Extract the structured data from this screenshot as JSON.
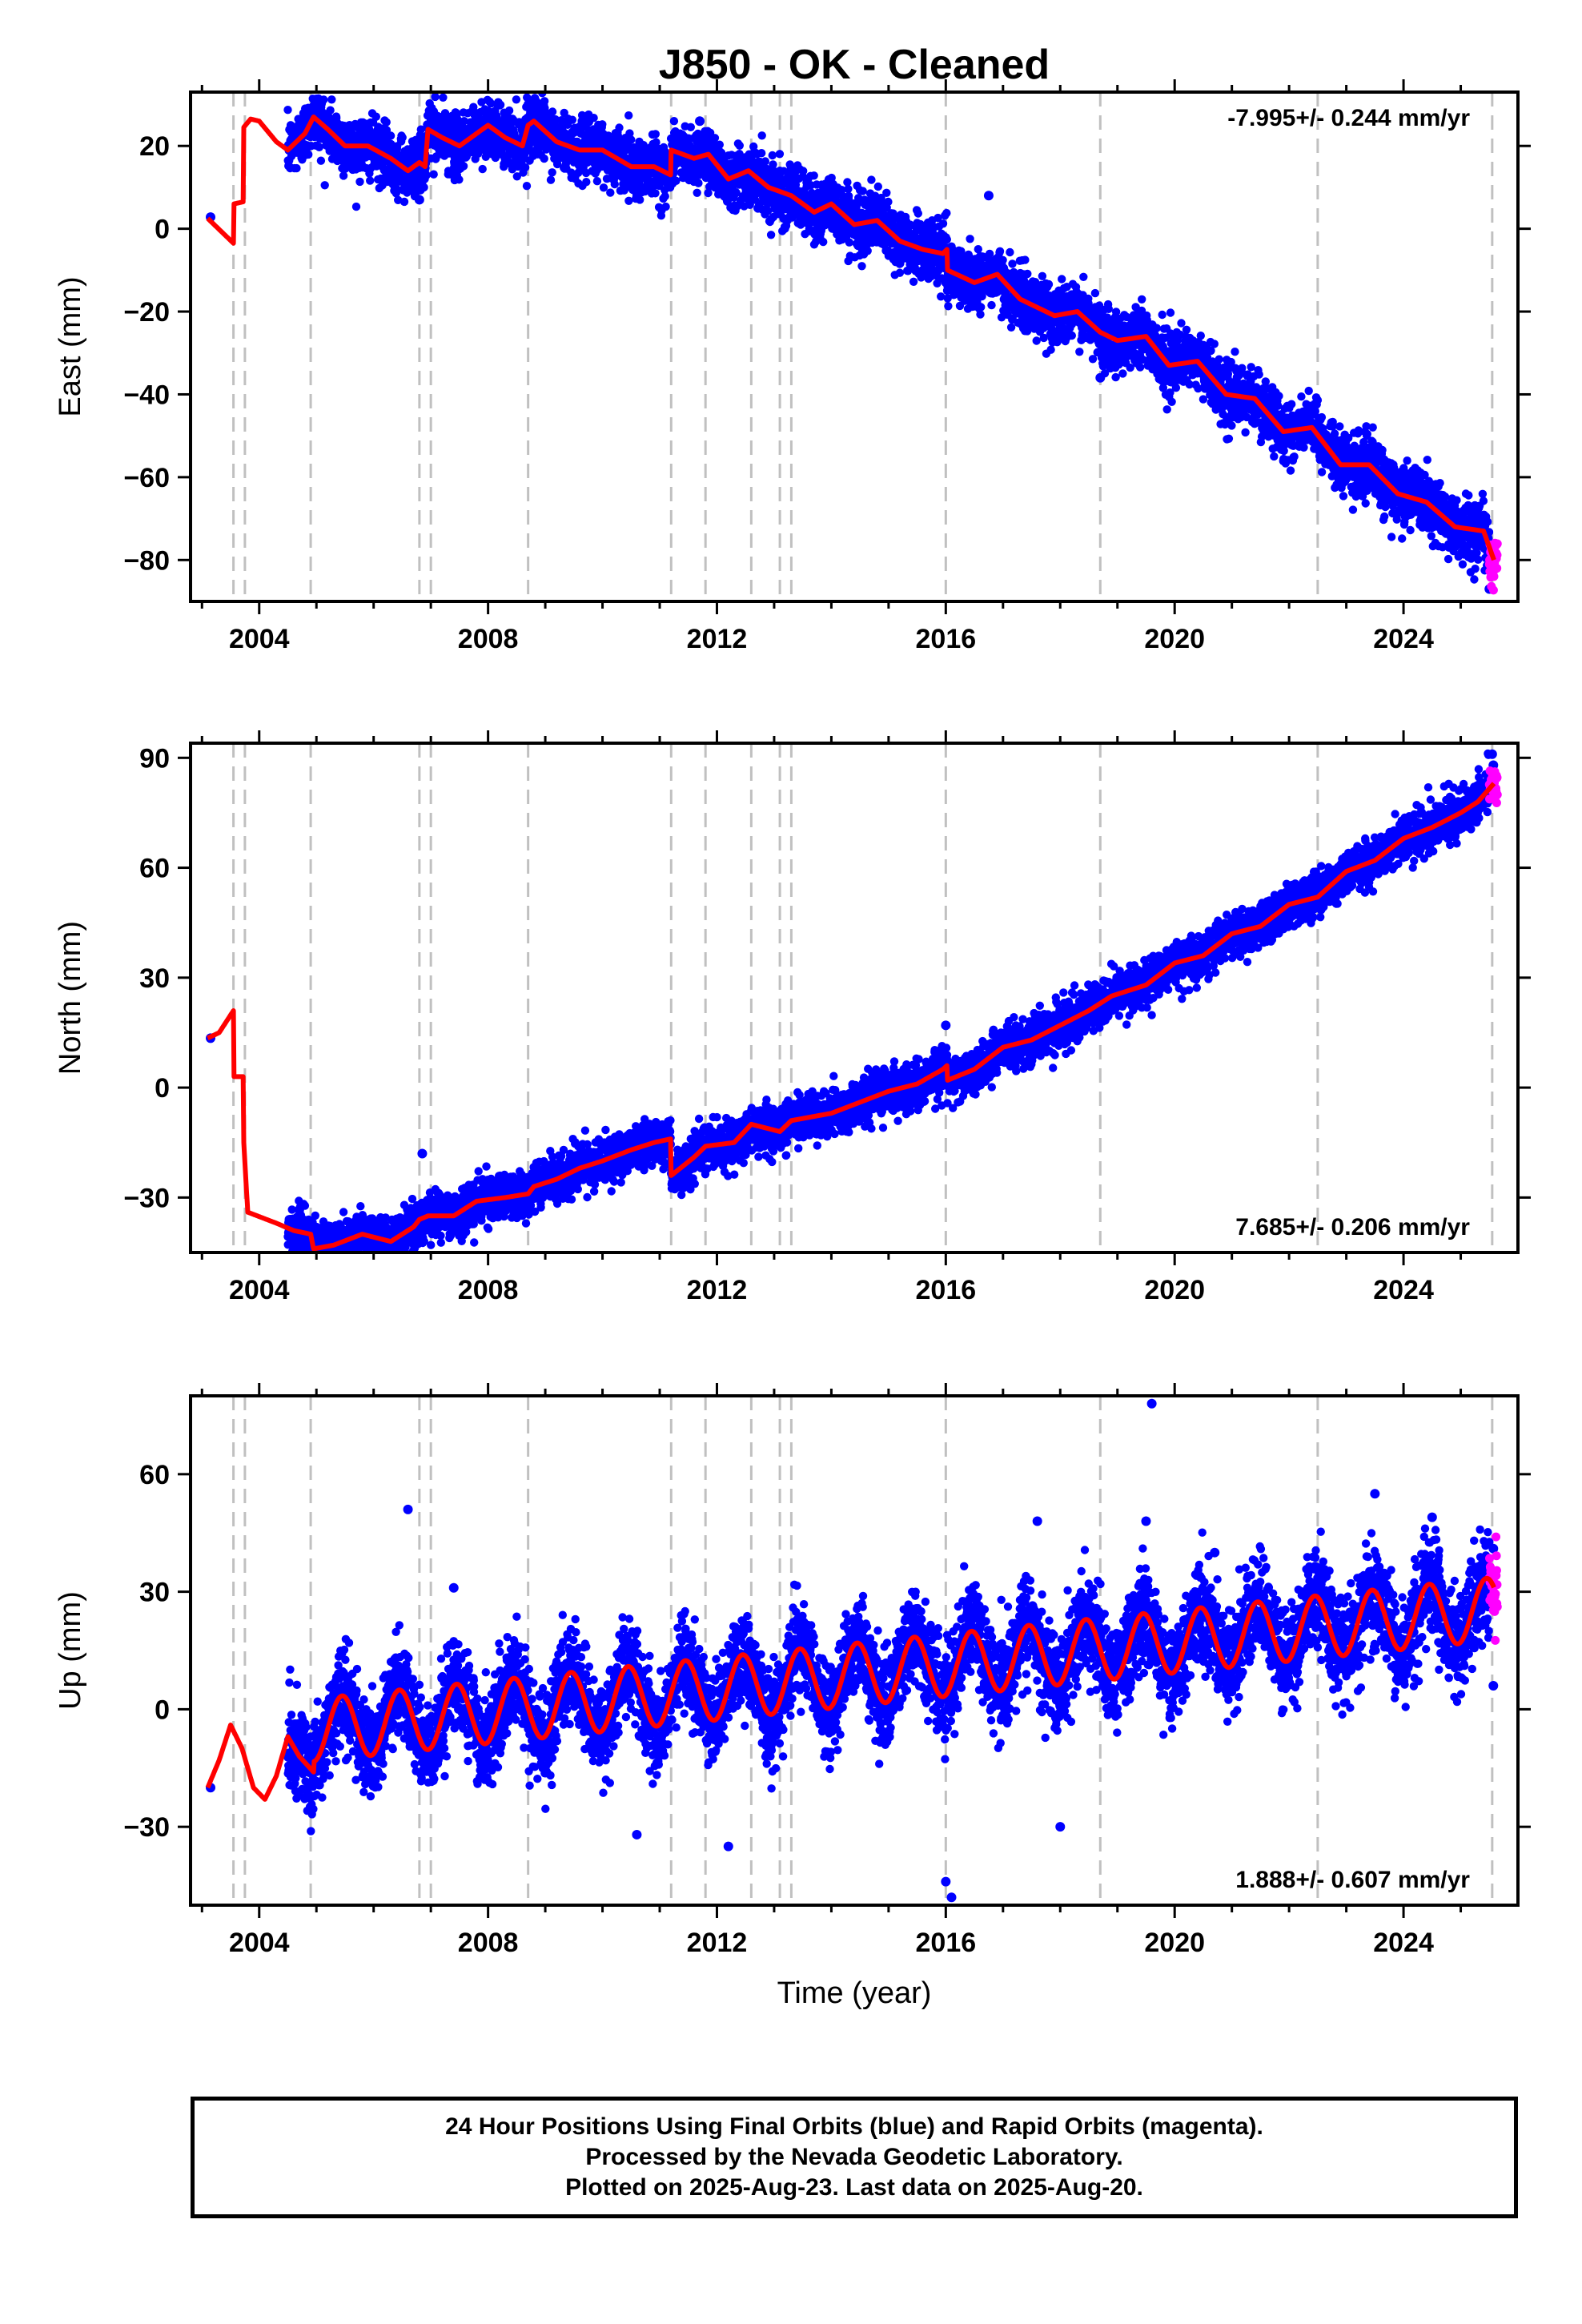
{
  "title": "J850  - OK - Cleaned",
  "footer": {
    "lines": [
      "24 Hour Positions Using Final Orbits (blue) and Rapid Orbits (magenta).",
      "Processed by the Nevada Geodetic Laboratory.",
      "Plotted on 2025-Aug-23. Last data on 2025-Aug-20."
    ]
  },
  "colors": {
    "final_orbits": "#0000ff",
    "rapid_orbits": "#ff00ff",
    "model": "#ff0000",
    "steps": "#c0c0c0"
  },
  "chart_data": [
    {
      "type": "scatter",
      "component": "east",
      "ylabel": "East (mm)",
      "xlim": [
        2002.8,
        2026.0
      ],
      "ylim": [
        -90,
        33
      ],
      "xticks": [
        2004,
        2008,
        2012,
        2016,
        2020,
        2024
      ],
      "yticks": [
        -80,
        -60,
        -40,
        -20,
        0,
        20
      ],
      "rate_label": "-7.995+/- 0.244 mm/yr",
      "rate_position": "top-right",
      "model": {
        "x": [
          2003.1,
          2003.55,
          2003.56,
          2003.72,
          2003.73,
          2003.85,
          2004.0,
          2004.3,
          2004.5,
          2004.8,
          2004.95,
          2005.2,
          2005.5,
          2005.9,
          2006.3,
          2006.6,
          2006.8,
          2006.9,
          2006.95,
          2007.2,
          2007.5,
          2007.8,
          2008.0,
          2008.3,
          2008.6,
          2008.7,
          2008.8,
          2009.2,
          2009.6,
          2010.0,
          2010.5,
          2010.9,
          2011.19,
          2011.2,
          2011.6,
          2011.85,
          2012.2,
          2012.55,
          2012.9,
          2013.3,
          2013.7,
          2014.0,
          2014.4,
          2014.8,
          2015.2,
          2015.6,
          2015.95,
          2016.02,
          2016.03,
          2016.5,
          2016.9,
          2017.3,
          2017.9,
          2018.3,
          2018.7,
          2019.0,
          2019.5,
          2019.9,
          2020.4,
          2020.9,
          2021.4,
          2021.9,
          2022.4,
          2022.9,
          2023.4,
          2023.9,
          2024.4,
          2024.9,
          2025.4,
          2025.58
        ],
        "y": [
          2.5,
          -3.5,
          6,
          6.5,
          24.5,
          26.5,
          26,
          21,
          19,
          23,
          27,
          24,
          20,
          20,
          17,
          14,
          16,
          15,
          24,
          22,
          20,
          23,
          25,
          22,
          20,
          25,
          26,
          21,
          19,
          19,
          15,
          15,
          13,
          19,
          17,
          18,
          12,
          14,
          10,
          8,
          4,
          6,
          1,
          2,
          -3,
          -5,
          -6,
          -5,
          -10,
          -13,
          -11,
          -17,
          -21,
          -20,
          -25,
          -27,
          -26,
          -33,
          -32,
          -40,
          -41,
          -49,
          -48,
          -57,
          -57,
          -64,
          -66,
          -72,
          -73,
          -80
        ]
      },
      "steps": [
        2003.55,
        2003.75,
        2004.9,
        2006.8,
        2007.0,
        2008.7,
        2011.2,
        2011.8,
        2012.6,
        2013.1,
        2013.3,
        2016.0,
        2018.7,
        2022.5,
        2025.55
      ],
      "residual_spread": 3.5,
      "data_start": 2004.5,
      "rapid_start": 2025.5,
      "outliers": [
        [
          2003.15,
          2.8
        ],
        [
          2011.7,
          26
        ],
        [
          2016.75,
          8
        ],
        [
          2018.7,
          -36
        ],
        [
          2025.5,
          -87
        ],
        [
          2006.8,
          7
        ]
      ]
    },
    {
      "type": "scatter",
      "component": "north",
      "ylabel": "North (mm)",
      "xlim": [
        2002.8,
        2026.0
      ],
      "ylim": [
        -45,
        94
      ],
      "xticks": [
        2004,
        2008,
        2012,
        2016,
        2020,
        2024
      ],
      "yticks": [
        -30,
        0,
        30,
        60,
        90
      ],
      "rate_label": "7.685+/- 0.206 mm/yr",
      "rate_position": "bottom-right",
      "model": {
        "x": [
          2003.1,
          2003.3,
          2003.55,
          2003.56,
          2003.72,
          2003.73,
          2003.8,
          2004.3,
          2004.6,
          2004.9,
          2004.95,
          2005.3,
          2005.8,
          2006.3,
          2006.7,
          2006.8,
          2006.95,
          2007.4,
          2007.8,
          2008.3,
          2008.7,
          2008.8,
          2009.2,
          2009.6,
          2010.0,
          2010.5,
          2010.9,
          2011.19,
          2011.2,
          2011.6,
          2011.8,
          2012.3,
          2012.6,
          2013.1,
          2013.3,
          2014.0,
          2014.5,
          2015.0,
          2015.5,
          2015.95,
          2016.02,
          2016.03,
          2016.5,
          2017.0,
          2017.5,
          2018.0,
          2018.5,
          2018.9,
          2019.5,
          2020.0,
          2020.5,
          2021.0,
          2021.5,
          2022.0,
          2022.5,
          2023.0,
          2023.5,
          2024.0,
          2024.5,
          2025.0,
          2025.3,
          2025.58
        ],
        "y": [
          13.5,
          15,
          21,
          3,
          3,
          -15,
          -34,
          -37,
          -39,
          -40,
          -44,
          -43,
          -40,
          -42,
          -38,
          -36,
          -35,
          -35,
          -31,
          -30,
          -29,
          -27,
          -25,
          -22,
          -20,
          -17,
          -15,
          -14,
          -24,
          -19,
          -16,
          -15,
          -10,
          -12,
          -9,
          -7,
          -4,
          -1,
          1,
          5,
          6,
          2,
          5,
          11,
          13,
          17,
          21,
          25,
          28,
          34,
          36,
          42,
          44,
          50,
          52,
          59,
          62,
          68,
          71,
          75,
          78,
          83
        ]
      },
      "steps": [
        2003.55,
        2003.75,
        2004.9,
        2006.8,
        2007.0,
        2008.7,
        2011.2,
        2011.8,
        2012.6,
        2013.1,
        2013.3,
        2016.0,
        2018.7,
        2022.5,
        2025.55
      ],
      "residual_spread": 3.0,
      "data_start": 2004.5,
      "rapid_start": 2025.5,
      "outliers": [
        [
          2003.15,
          13.5
        ],
        [
          2006.85,
          -18
        ],
        [
          2016.0,
          17
        ],
        [
          2025.55,
          91
        ],
        [
          2025.57,
          88
        ]
      ]
    },
    {
      "type": "scatter",
      "component": "up",
      "ylabel": "Up (mm)",
      "xlabel": "Time (year)",
      "xlim": [
        2002.8,
        2026.0
      ],
      "ylim": [
        -50,
        80
      ],
      "xticks": [
        2004,
        2008,
        2012,
        2016,
        2020,
        2024
      ],
      "yticks": [
        -30,
        0,
        30,
        60
      ],
      "rate_label": "1.888+/- 0.607 mm/yr",
      "rate_position": "bottom-right",
      "model": {
        "trend_start": -6,
        "trend_rate": 1.5,
        "annual_amplitude": 8,
        "pre_x": [
          2003.1,
          2003.3,
          2003.5,
          2003.7,
          2003.9,
          2004.1,
          2004.3,
          2004.5,
          2004.7,
          2004.95
        ],
        "pre_y": [
          -20,
          -13,
          -4,
          -10,
          -20,
          -23,
          -17,
          -7,
          -12,
          -16
        ]
      },
      "steps": [
        2003.55,
        2003.75,
        2004.9,
        2006.8,
        2007.0,
        2008.7,
        2011.2,
        2011.8,
        2012.6,
        2013.1,
        2013.3,
        2016.0,
        2018.7,
        2022.5,
        2025.55
      ],
      "residual_spread": 5.5,
      "data_start": 2004.5,
      "rapid_start": 2025.5,
      "outliers": [
        [
          2003.15,
          -20
        ],
        [
          2006.6,
          51
        ],
        [
          2007.4,
          31
        ],
        [
          2019.6,
          78
        ],
        [
          2016.1,
          -48
        ],
        [
          2016.0,
          -44
        ],
        [
          2012.2,
          -35
        ],
        [
          2010.6,
          -32
        ],
        [
          2018.0,
          -30
        ],
        [
          2023.5,
          55
        ],
        [
          2024.5,
          49
        ],
        [
          2019.5,
          48
        ],
        [
          2017.6,
          48
        ],
        [
          2020.7,
          40
        ],
        [
          2025.57,
          41
        ],
        [
          2025.57,
          6
        ]
      ]
    }
  ]
}
